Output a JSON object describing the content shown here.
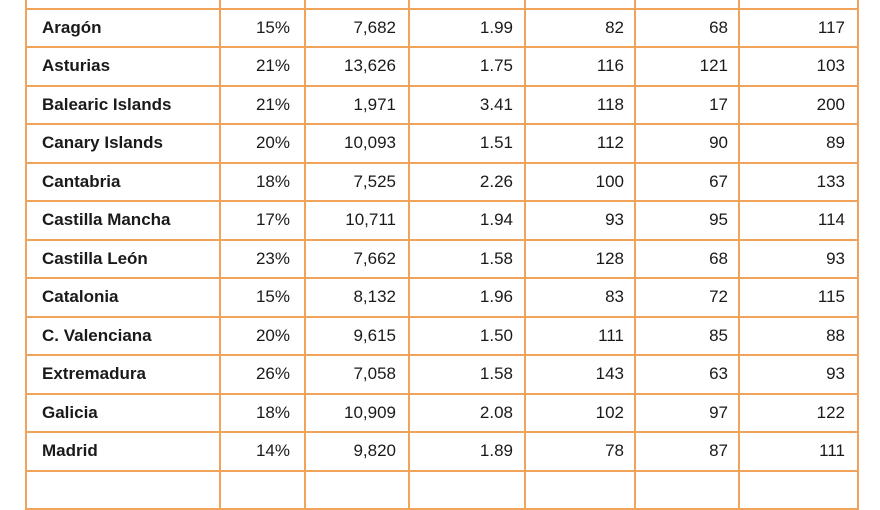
{
  "table": {
    "rows": [
      {
        "region": "",
        "cells": [
          "",
          "",
          "",
          "",
          "",
          ""
        ]
      },
      {
        "region": "Aragón",
        "cells": [
          "15%",
          "7,682",
          "1.99",
          "82",
          "68",
          "117"
        ]
      },
      {
        "region": "Asturias",
        "cells": [
          "21%",
          "13,626",
          "1.75",
          "116",
          "121",
          "103"
        ]
      },
      {
        "region": "Balearic Islands",
        "cells": [
          "21%",
          "1,971",
          "3.41",
          "118",
          "17",
          "200"
        ]
      },
      {
        "region": "Canary Islands",
        "cells": [
          "20%",
          "10,093",
          "1.51",
          "112",
          "90",
          "89"
        ]
      },
      {
        "region": "Cantabria",
        "cells": [
          "18%",
          "7,525",
          "2.26",
          "100",
          "67",
          "133"
        ]
      },
      {
        "region": "Castilla Mancha",
        "cells": [
          "17%",
          "10,711",
          "1.94",
          "93",
          "95",
          "114"
        ]
      },
      {
        "region": "Castilla León",
        "cells": [
          "23%",
          "7,662",
          "1.58",
          "128",
          "68",
          "93"
        ]
      },
      {
        "region": "Catalonia",
        "cells": [
          "15%",
          "8,132",
          "1.96",
          "83",
          "72",
          "115"
        ]
      },
      {
        "region": "C. Valenciana",
        "cells": [
          "20%",
          "9,615",
          "1.50",
          "111",
          "85",
          "88"
        ]
      },
      {
        "region": "Extremadura",
        "cells": [
          "26%",
          "7,058",
          "1.58",
          "143",
          "63",
          "93"
        ]
      },
      {
        "region": "Galicia",
        "cells": [
          "18%",
          "10,909",
          "2.08",
          "102",
          "97",
          "122"
        ]
      },
      {
        "region": "Madrid",
        "cells": [
          "14%",
          "9,820",
          "1.89",
          "78",
          "87",
          "111"
        ]
      },
      {
        "region": "",
        "cells": [
          "",
          "",
          "",
          "",
          "",
          ""
        ]
      }
    ]
  }
}
